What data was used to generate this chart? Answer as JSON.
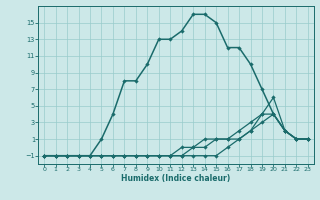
{
  "xlabel": "Humidex (Indice chaleur)",
  "bg_color": "#cce8e8",
  "grid_color": "#99cccc",
  "line_color": "#1a6b6b",
  "xlim": [
    -0.5,
    23.5
  ],
  "ylim": [
    -2.0,
    17.0
  ],
  "xticks": [
    0,
    1,
    2,
    3,
    4,
    5,
    6,
    7,
    8,
    9,
    10,
    11,
    12,
    13,
    14,
    15,
    16,
    17,
    18,
    19,
    20,
    21,
    22,
    23
  ],
  "yticks": [
    -1,
    1,
    3,
    5,
    7,
    9,
    11,
    13,
    15
  ],
  "line1_x": [
    0,
    1,
    2,
    3,
    4,
    5,
    6,
    7,
    8,
    9,
    10,
    11,
    12,
    13,
    14,
    15,
    16,
    17,
    18,
    19,
    20,
    21,
    22,
    23
  ],
  "line1_y": [
    -1,
    -1,
    -1,
    -1,
    -1,
    1,
    4,
    8,
    8,
    10,
    13,
    13,
    14,
    16,
    16,
    15,
    12,
    12,
    10,
    7,
    4,
    2,
    1,
    1
  ],
  "line2_x": [
    0,
    1,
    2,
    3,
    4,
    5,
    6,
    7,
    8,
    9,
    10,
    11,
    12,
    13,
    14,
    15,
    16,
    17,
    18,
    19,
    20,
    21,
    22,
    23
  ],
  "line2_y": [
    -1,
    -1,
    -1,
    -1,
    -1,
    -1,
    -1,
    -1,
    -1,
    -1,
    -1,
    -1,
    -1,
    -1,
    -1,
    -1,
    0,
    1,
    2,
    4,
    6,
    2,
    1,
    1
  ],
  "line3_x": [
    0,
    1,
    2,
    3,
    4,
    5,
    6,
    7,
    8,
    9,
    10,
    11,
    12,
    13,
    14,
    15,
    16,
    17,
    18,
    19,
    20,
    21,
    22,
    23
  ],
  "line3_y": [
    -1,
    -1,
    -1,
    -1,
    -1,
    -1,
    -1,
    -1,
    -1,
    -1,
    -1,
    -1,
    0,
    0,
    1,
    1,
    1,
    2,
    3,
    4,
    4,
    2,
    1,
    1
  ],
  "line4_x": [
    0,
    1,
    2,
    3,
    4,
    5,
    6,
    7,
    8,
    9,
    10,
    11,
    12,
    13,
    14,
    15,
    16,
    17,
    18,
    19,
    20,
    21,
    22,
    23
  ],
  "line4_y": [
    -1,
    -1,
    -1,
    -1,
    -1,
    -1,
    -1,
    -1,
    -1,
    -1,
    -1,
    -1,
    -1,
    0,
    0,
    1,
    1,
    1,
    2,
    3,
    4,
    2,
    1,
    1
  ]
}
